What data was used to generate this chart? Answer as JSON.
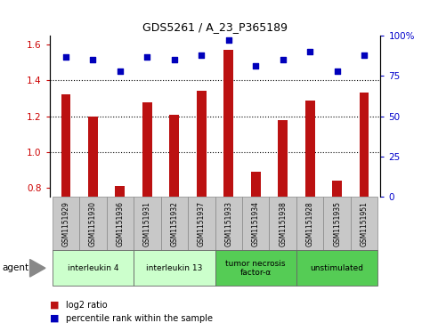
{
  "title": "GDS5261 / A_23_P365189",
  "samples": [
    "GSM1151929",
    "GSM1151930",
    "GSM1151936",
    "GSM1151931",
    "GSM1151932",
    "GSM1151937",
    "GSM1151933",
    "GSM1151934",
    "GSM1151938",
    "GSM1151928",
    "GSM1151935",
    "GSM1151951"
  ],
  "log2_ratio": [
    1.32,
    1.2,
    0.81,
    1.28,
    1.21,
    1.34,
    1.57,
    0.89,
    1.18,
    1.29,
    0.84,
    1.33
  ],
  "percentile_rank": [
    87,
    85,
    78,
    87,
    85,
    88,
    97,
    81,
    85,
    90,
    78,
    88
  ],
  "agents": [
    {
      "label": "interleukin 4",
      "start": 0,
      "end": 3,
      "color": "#ccffcc"
    },
    {
      "label": "interleukin 13",
      "start": 3,
      "end": 6,
      "color": "#ccffcc"
    },
    {
      "label": "tumor necrosis\nfactor-α",
      "start": 6,
      "end": 9,
      "color": "#55cc55"
    },
    {
      "label": "unstimulated",
      "start": 9,
      "end": 12,
      "color": "#55cc55"
    }
  ],
  "ylim_left": [
    0.75,
    1.65
  ],
  "ylim_right": [
    0,
    100
  ],
  "yticks_left": [
    0.8,
    1.0,
    1.2,
    1.4,
    1.6
  ],
  "yticks_right": [
    0,
    25,
    50,
    75,
    100
  ],
  "bar_color": "#bb1111",
  "dot_color": "#0000bb",
  "bar_width": 0.35,
  "background_color": "#ffffff",
  "legend_bar_label": "log2 ratio",
  "legend_dot_label": "percentile rank within the sample",
  "agent_label": "agent",
  "tick_box_color": "#c8c8c8",
  "ytick_left_color": "#cc0000",
  "ytick_right_color": "#0000cc",
  "gridline_color": "#000000",
  "gridline_values": [
    1.0,
    1.2,
    1.4
  ]
}
